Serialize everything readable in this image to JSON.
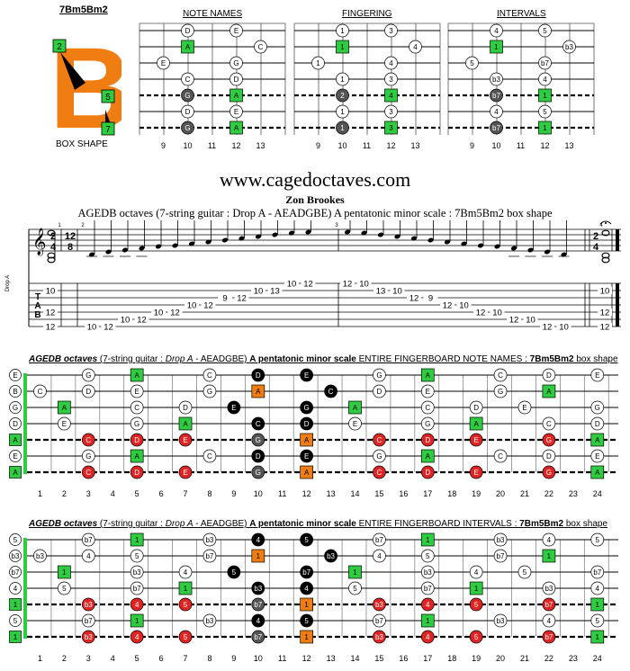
{
  "header": {
    "shape_name": "7Bm5Bm2",
    "box_shape_label": "BOX SHAPE",
    "big_letter": "B",
    "logo_fingers": [
      "2",
      "5",
      "7"
    ],
    "col_titles": [
      "NOTE NAMES",
      "FINGERING",
      "INTERVALS"
    ],
    "fret_numbers": [
      "9",
      "10",
      "11",
      "12",
      "13"
    ]
  },
  "small_diagrams": {
    "note_names": [
      {
        "s": 0,
        "f": 10,
        "t": "D",
        "k": "w"
      },
      {
        "s": 0,
        "f": 12,
        "t": "E",
        "k": "w"
      },
      {
        "s": 1,
        "f": 10,
        "t": "A",
        "k": "g"
      },
      {
        "s": 1,
        "f": 13,
        "t": "C",
        "k": "w"
      },
      {
        "s": 2,
        "f": 9,
        "t": "E",
        "k": "w"
      },
      {
        "s": 2,
        "f": 12,
        "t": "G",
        "k": "w"
      },
      {
        "s": 3,
        "f": 10,
        "t": "C",
        "k": "w"
      },
      {
        "s": 3,
        "f": 12,
        "t": "D",
        "k": "w"
      },
      {
        "s": 4,
        "f": 10,
        "t": "G",
        "k": "d"
      },
      {
        "s": 4,
        "f": 12,
        "t": "A",
        "k": "g"
      },
      {
        "s": 5,
        "f": 10,
        "t": "D",
        "k": "w"
      },
      {
        "s": 5,
        "f": 12,
        "t": "E",
        "k": "w"
      },
      {
        "s": 6,
        "f": 10,
        "t": "G",
        "k": "d"
      },
      {
        "s": 6,
        "f": 12,
        "t": "A",
        "k": "g"
      }
    ],
    "fingering": [
      {
        "s": 0,
        "f": 10,
        "t": "1",
        "k": "w"
      },
      {
        "s": 0,
        "f": 12,
        "t": "3",
        "k": "w"
      },
      {
        "s": 1,
        "f": 10,
        "t": "1",
        "k": "g"
      },
      {
        "s": 1,
        "f": 13,
        "t": "4",
        "k": "w"
      },
      {
        "s": 2,
        "f": 9,
        "t": "1",
        "k": "w"
      },
      {
        "s": 2,
        "f": 12,
        "t": "4",
        "k": "w"
      },
      {
        "s": 3,
        "f": 10,
        "t": "1",
        "k": "w"
      },
      {
        "s": 3,
        "f": 12,
        "t": "3",
        "k": "w"
      },
      {
        "s": 4,
        "f": 10,
        "t": "2",
        "k": "d"
      },
      {
        "s": 4,
        "f": 12,
        "t": "4",
        "k": "g"
      },
      {
        "s": 5,
        "f": 10,
        "t": "1",
        "k": "w"
      },
      {
        "s": 5,
        "f": 12,
        "t": "3",
        "k": "w"
      },
      {
        "s": 6,
        "f": 10,
        "t": "1",
        "k": "d"
      },
      {
        "s": 6,
        "f": 12,
        "t": "3",
        "k": "g"
      }
    ],
    "intervals": [
      {
        "s": 0,
        "f": 10,
        "t": "4",
        "k": "w"
      },
      {
        "s": 0,
        "f": 12,
        "t": "5",
        "k": "w"
      },
      {
        "s": 1,
        "f": 10,
        "t": "1",
        "k": "g"
      },
      {
        "s": 1,
        "f": 13,
        "t": "b3",
        "k": "w"
      },
      {
        "s": 2,
        "f": 9,
        "t": "5",
        "k": "w"
      },
      {
        "s": 2,
        "f": 12,
        "t": "b7",
        "k": "w"
      },
      {
        "s": 3,
        "f": 10,
        "t": "b3",
        "k": "w"
      },
      {
        "s": 3,
        "f": 12,
        "t": "4",
        "k": "w"
      },
      {
        "s": 4,
        "f": 10,
        "t": "b7",
        "k": "d"
      },
      {
        "s": 4,
        "f": 12,
        "t": "1",
        "k": "g"
      },
      {
        "s": 5,
        "f": 10,
        "t": "4",
        "k": "w"
      },
      {
        "s": 5,
        "f": 12,
        "t": "5",
        "k": "w"
      },
      {
        "s": 6,
        "f": 10,
        "t": "b7",
        "k": "d"
      },
      {
        "s": 6,
        "f": 12,
        "t": "1",
        "k": "g"
      }
    ]
  },
  "site": "www.cagedoctaves.com",
  "author": "Zon Brookes",
  "description": "AGEDB octaves (7-string guitar : Drop A - AEADGBE) A pentatonic minor scale : 7Bm5Bm2 box shape",
  "notation": {
    "left_tuning": "Drop A",
    "tab_letters": [
      "T",
      "A",
      "B"
    ],
    "time1": [
      "2",
      "4"
    ],
    "time2": [
      "12",
      "8"
    ],
    "time3": [
      "2",
      "4"
    ],
    "measures": [
      "1",
      "2",
      "3",
      "4"
    ],
    "m1_tab": [
      {
        "s": 1,
        "t": "10"
      },
      {
        "s": 4,
        "t": "12"
      },
      {
        "s": 6,
        "t": "12"
      }
    ],
    "run_up": [
      {
        "s": 6,
        "t": "10"
      },
      {
        "s": 6,
        "t": "12"
      },
      {
        "s": 5,
        "t": "10"
      },
      {
        "s": 5,
        "t": "12"
      },
      {
        "s": 4,
        "t": "10"
      },
      {
        "s": 4,
        "t": "12"
      },
      {
        "s": 3,
        "t": "10"
      },
      {
        "s": 3,
        "t": "12"
      },
      {
        "s": 2,
        "t": "9"
      },
      {
        "s": 2,
        "t": "12"
      },
      {
        "s": 1,
        "t": "10"
      },
      {
        "s": 1,
        "t": "13"
      },
      {
        "s": 0,
        "t": "10"
      },
      {
        "s": 0,
        "t": "12"
      }
    ],
    "run_down": [
      {
        "s": 0,
        "t": "12"
      },
      {
        "s": 0,
        "t": "10"
      },
      {
        "s": 1,
        "t": "13"
      },
      {
        "s": 1,
        "t": "10"
      },
      {
        "s": 2,
        "t": "12"
      },
      {
        "s": 2,
        "t": "9"
      },
      {
        "s": 3,
        "t": "12"
      },
      {
        "s": 3,
        "t": "10"
      },
      {
        "s": 4,
        "t": "12"
      },
      {
        "s": 4,
        "t": "10"
      },
      {
        "s": 5,
        "t": "12"
      },
      {
        "s": 5,
        "t": "10"
      },
      {
        "s": 6,
        "t": "12"
      },
      {
        "s": 6,
        "t": "10"
      }
    ],
    "m4_tab": [
      {
        "s": 1,
        "t": "10"
      },
      {
        "s": 4,
        "t": "12"
      },
      {
        "s": 6,
        "t": "12"
      }
    ]
  },
  "fb1": {
    "title_parts": [
      "AGEDB octaves",
      " (7-string guitar : ",
      "Drop A",
      " - AEADGBE) ",
      "A pentatonic minor scale",
      " ENTIRE FINGERBOARD NOTE NAMES : ",
      "7Bm5Bm2",
      " box shape"
    ],
    "open": [
      "E",
      "B",
      "G",
      "D",
      "A",
      "E",
      "A"
    ],
    "open_k": [
      "w",
      "w",
      "w",
      "w",
      "g",
      "w",
      "g"
    ],
    "notes": [
      {
        "s": 0,
        "f": 3,
        "t": "G",
        "k": "w"
      },
      {
        "s": 0,
        "f": 5,
        "t": "A",
        "k": "g"
      },
      {
        "s": 0,
        "f": 8,
        "t": "C",
        "k": "w"
      },
      {
        "s": 0,
        "f": 10,
        "t": "D",
        "k": "b"
      },
      {
        "s": 0,
        "f": 12,
        "t": "E",
        "k": "b"
      },
      {
        "s": 0,
        "f": 15,
        "t": "G",
        "k": "w"
      },
      {
        "s": 0,
        "f": 17,
        "t": "A",
        "k": "g"
      },
      {
        "s": 0,
        "f": 20,
        "t": "C",
        "k": "w"
      },
      {
        "s": 0,
        "f": 22,
        "t": "D",
        "k": "w"
      },
      {
        "s": 0,
        "f": 24,
        "t": "E",
        "k": "w"
      },
      {
        "s": 1,
        "f": 1,
        "t": "C",
        "k": "w"
      },
      {
        "s": 1,
        "f": 3,
        "t": "D",
        "k": "w"
      },
      {
        "s": 1,
        "f": 5,
        "t": "E",
        "k": "w"
      },
      {
        "s": 1,
        "f": 8,
        "t": "G",
        "k": "w"
      },
      {
        "s": 1,
        "f": 10,
        "t": "A",
        "k": "o"
      },
      {
        "s": 1,
        "f": 13,
        "t": "C",
        "k": "b"
      },
      {
        "s": 1,
        "f": 15,
        "t": "D",
        "k": "w"
      },
      {
        "s": 1,
        "f": 17,
        "t": "E",
        "k": "w"
      },
      {
        "s": 1,
        "f": 20,
        "t": "G",
        "k": "w"
      },
      {
        "s": 1,
        "f": 22,
        "t": "A",
        "k": "g"
      },
      {
        "s": 2,
        "f": 2,
        "t": "A",
        "k": "g"
      },
      {
        "s": 2,
        "f": 5,
        "t": "C",
        "k": "w"
      },
      {
        "s": 2,
        "f": 7,
        "t": "D",
        "k": "w"
      },
      {
        "s": 2,
        "f": 9,
        "t": "E",
        "k": "b"
      },
      {
        "s": 2,
        "f": 12,
        "t": "G",
        "k": "b"
      },
      {
        "s": 2,
        "f": 14,
        "t": "A",
        "k": "g"
      },
      {
        "s": 2,
        "f": 17,
        "t": "C",
        "k": "w"
      },
      {
        "s": 2,
        "f": 19,
        "t": "D",
        "k": "w"
      },
      {
        "s": 2,
        "f": 21,
        "t": "E",
        "k": "w"
      },
      {
        "s": 2,
        "f": 24,
        "t": "G",
        "k": "w"
      },
      {
        "s": 3,
        "f": 2,
        "t": "E",
        "k": "w"
      },
      {
        "s": 3,
        "f": 5,
        "t": "G",
        "k": "w"
      },
      {
        "s": 3,
        "f": 7,
        "t": "A",
        "k": "g"
      },
      {
        "s": 3,
        "f": 10,
        "t": "C",
        "k": "b"
      },
      {
        "s": 3,
        "f": 12,
        "t": "D",
        "k": "b"
      },
      {
        "s": 3,
        "f": 14,
        "t": "E",
        "k": "w"
      },
      {
        "s": 3,
        "f": 17,
        "t": "G",
        "k": "w"
      },
      {
        "s": 3,
        "f": 19,
        "t": "A",
        "k": "g"
      },
      {
        "s": 3,
        "f": 22,
        "t": "C",
        "k": "w"
      },
      {
        "s": 3,
        "f": 24,
        "t": "D",
        "k": "w"
      },
      {
        "s": 4,
        "f": 3,
        "t": "C",
        "k": "r"
      },
      {
        "s": 4,
        "f": 5,
        "t": "D",
        "k": "r"
      },
      {
        "s": 4,
        "f": 7,
        "t": "E",
        "k": "r"
      },
      {
        "s": 4,
        "f": 10,
        "t": "G",
        "k": "d"
      },
      {
        "s": 4,
        "f": 12,
        "t": "A",
        "k": "o"
      },
      {
        "s": 4,
        "f": 15,
        "t": "C",
        "k": "r"
      },
      {
        "s": 4,
        "f": 17,
        "t": "D",
        "k": "r"
      },
      {
        "s": 4,
        "f": 19,
        "t": "E",
        "k": "r"
      },
      {
        "s": 4,
        "f": 22,
        "t": "G",
        "k": "r"
      },
      {
        "s": 4,
        "f": 24,
        "t": "A",
        "k": "g"
      },
      {
        "s": 5,
        "f": 3,
        "t": "G",
        "k": "w"
      },
      {
        "s": 5,
        "f": 5,
        "t": "A",
        "k": "g"
      },
      {
        "s": 5,
        "f": 8,
        "t": "C",
        "k": "w"
      },
      {
        "s": 5,
        "f": 10,
        "t": "D",
        "k": "b"
      },
      {
        "s": 5,
        "f": 12,
        "t": "E",
        "k": "b"
      },
      {
        "s": 5,
        "f": 15,
        "t": "G",
        "k": "w"
      },
      {
        "s": 5,
        "f": 17,
        "t": "A",
        "k": "g"
      },
      {
        "s": 5,
        "f": 20,
        "t": "C",
        "k": "w"
      },
      {
        "s": 5,
        "f": 22,
        "t": "D",
        "k": "w"
      },
      {
        "s": 5,
        "f": 24,
        "t": "E",
        "k": "w"
      },
      {
        "s": 6,
        "f": 3,
        "t": "C",
        "k": "r"
      },
      {
        "s": 6,
        "f": 5,
        "t": "D",
        "k": "r"
      },
      {
        "s": 6,
        "f": 7,
        "t": "E",
        "k": "r"
      },
      {
        "s": 6,
        "f": 10,
        "t": "G",
        "k": "d"
      },
      {
        "s": 6,
        "f": 12,
        "t": "A",
        "k": "o"
      },
      {
        "s": 6,
        "f": 15,
        "t": "C",
        "k": "r"
      },
      {
        "s": 6,
        "f": 17,
        "t": "D",
        "k": "r"
      },
      {
        "s": 6,
        "f": 19,
        "t": "E",
        "k": "r"
      },
      {
        "s": 6,
        "f": 22,
        "t": "G",
        "k": "r"
      },
      {
        "s": 6,
        "f": 24,
        "t": "A",
        "k": "g"
      }
    ]
  },
  "fb2": {
    "title_parts": [
      "AGEDB octaves",
      " (7-string guitar : ",
      "Drop A",
      " - AEADGBE) ",
      "A pentatonic minor scale",
      " ENTIRE FINGERBOARD INTERVALS : ",
      "7Bm5Bm2",
      " box shape"
    ],
    "open": [
      "5",
      "b3",
      "b7",
      "4",
      "1",
      "5",
      "1"
    ],
    "open_k": [
      "w",
      "w",
      "w",
      "w",
      "g",
      "w",
      "g"
    ],
    "notes": [
      {
        "s": 0,
        "f": 3,
        "t": "b7",
        "k": "w"
      },
      {
        "s": 0,
        "f": 5,
        "t": "1",
        "k": "g"
      },
      {
        "s": 0,
        "f": 8,
        "t": "b3",
        "k": "w"
      },
      {
        "s": 0,
        "f": 10,
        "t": "4",
        "k": "b"
      },
      {
        "s": 0,
        "f": 12,
        "t": "5",
        "k": "b"
      },
      {
        "s": 0,
        "f": 15,
        "t": "b7",
        "k": "w"
      },
      {
        "s": 0,
        "f": 17,
        "t": "1",
        "k": "g"
      },
      {
        "s": 0,
        "f": 20,
        "t": "b3",
        "k": "w"
      },
      {
        "s": 0,
        "f": 22,
        "t": "4",
        "k": "w"
      },
      {
        "s": 0,
        "f": 24,
        "t": "5",
        "k": "w"
      },
      {
        "s": 1,
        "f": 1,
        "t": "b3",
        "k": "w"
      },
      {
        "s": 1,
        "f": 3,
        "t": "4",
        "k": "w"
      },
      {
        "s": 1,
        "f": 5,
        "t": "5",
        "k": "w"
      },
      {
        "s": 1,
        "f": 8,
        "t": "b7",
        "k": "w"
      },
      {
        "s": 1,
        "f": 10,
        "t": "1",
        "k": "o"
      },
      {
        "s": 1,
        "f": 13,
        "t": "b3",
        "k": "b"
      },
      {
        "s": 1,
        "f": 15,
        "t": "4",
        "k": "w"
      },
      {
        "s": 1,
        "f": 17,
        "t": "5",
        "k": "w"
      },
      {
        "s": 1,
        "f": 20,
        "t": "b7",
        "k": "w"
      },
      {
        "s": 1,
        "f": 22,
        "t": "1",
        "k": "g"
      },
      {
        "s": 2,
        "f": 2,
        "t": "1",
        "k": "g"
      },
      {
        "s": 2,
        "f": 5,
        "t": "b3",
        "k": "w"
      },
      {
        "s": 2,
        "f": 7,
        "t": "4",
        "k": "w"
      },
      {
        "s": 2,
        "f": 9,
        "t": "5",
        "k": "b"
      },
      {
        "s": 2,
        "f": 12,
        "t": "b7",
        "k": "b"
      },
      {
        "s": 2,
        "f": 14,
        "t": "1",
        "k": "g"
      },
      {
        "s": 2,
        "f": 17,
        "t": "b3",
        "k": "w"
      },
      {
        "s": 2,
        "f": 19,
        "t": "4",
        "k": "w"
      },
      {
        "s": 2,
        "f": 21,
        "t": "5",
        "k": "w"
      },
      {
        "s": 2,
        "f": 24,
        "t": "b7",
        "k": "w"
      },
      {
        "s": 3,
        "f": 2,
        "t": "5",
        "k": "w"
      },
      {
        "s": 3,
        "f": 5,
        "t": "b7",
        "k": "w"
      },
      {
        "s": 3,
        "f": 7,
        "t": "1",
        "k": "g"
      },
      {
        "s": 3,
        "f": 10,
        "t": "b3",
        "k": "b"
      },
      {
        "s": 3,
        "f": 12,
        "t": "4",
        "k": "b"
      },
      {
        "s": 3,
        "f": 14,
        "t": "5",
        "k": "w"
      },
      {
        "s": 3,
        "f": 17,
        "t": "b7",
        "k": "w"
      },
      {
        "s": 3,
        "f": 19,
        "t": "1",
        "k": "g"
      },
      {
        "s": 3,
        "f": 22,
        "t": "b3",
        "k": "w"
      },
      {
        "s": 3,
        "f": 24,
        "t": "4",
        "k": "w"
      },
      {
        "s": 4,
        "f": 3,
        "t": "b3",
        "k": "r"
      },
      {
        "s": 4,
        "f": 5,
        "t": "4",
        "k": "r"
      },
      {
        "s": 4,
        "f": 7,
        "t": "5",
        "k": "r"
      },
      {
        "s": 4,
        "f": 10,
        "t": "b7",
        "k": "d"
      },
      {
        "s": 4,
        "f": 12,
        "t": "1",
        "k": "o"
      },
      {
        "s": 4,
        "f": 15,
        "t": "b3",
        "k": "r"
      },
      {
        "s": 4,
        "f": 17,
        "t": "4",
        "k": "r"
      },
      {
        "s": 4,
        "f": 19,
        "t": "5",
        "k": "r"
      },
      {
        "s": 4,
        "f": 22,
        "t": "b7",
        "k": "r"
      },
      {
        "s": 4,
        "f": 24,
        "t": "1",
        "k": "g"
      },
      {
        "s": 5,
        "f": 3,
        "t": "b7",
        "k": "w"
      },
      {
        "s": 5,
        "f": 5,
        "t": "1",
        "k": "g"
      },
      {
        "s": 5,
        "f": 8,
        "t": "b3",
        "k": "w"
      },
      {
        "s": 5,
        "f": 10,
        "t": "4",
        "k": "b"
      },
      {
        "s": 5,
        "f": 12,
        "t": "5",
        "k": "b"
      },
      {
        "s": 5,
        "f": 15,
        "t": "b7",
        "k": "w"
      },
      {
        "s": 5,
        "f": 17,
        "t": "1",
        "k": "g"
      },
      {
        "s": 5,
        "f": 20,
        "t": "b3",
        "k": "w"
      },
      {
        "s": 5,
        "f": 22,
        "t": "4",
        "k": "w"
      },
      {
        "s": 5,
        "f": 24,
        "t": "5",
        "k": "w"
      },
      {
        "s": 6,
        "f": 3,
        "t": "b3",
        "k": "r"
      },
      {
        "s": 6,
        "f": 5,
        "t": "4",
        "k": "r"
      },
      {
        "s": 6,
        "f": 7,
        "t": "5",
        "k": "r"
      },
      {
        "s": 6,
        "f": 10,
        "t": "b7",
        "k": "d"
      },
      {
        "s": 6,
        "f": 12,
        "t": "1",
        "k": "o"
      },
      {
        "s": 6,
        "f": 15,
        "t": "b3",
        "k": "r"
      },
      {
        "s": 6,
        "f": 17,
        "t": "4",
        "k": "r"
      },
      {
        "s": 6,
        "f": 19,
        "t": "5",
        "k": "r"
      },
      {
        "s": 6,
        "f": 22,
        "t": "b7",
        "k": "r"
      },
      {
        "s": 6,
        "f": 24,
        "t": "1",
        "k": "g"
      }
    ]
  },
  "fret_labels": [
    "1",
    "2",
    "3",
    "4",
    "5",
    "6",
    "7",
    "8",
    "9",
    "10",
    "11",
    "12",
    "13",
    "14",
    "15",
    "16",
    "17",
    "18",
    "19",
    "20",
    "21",
    "22",
    "23",
    "24"
  ],
  "colors": {
    "green": "#2ecc40",
    "orange": "#f07d12",
    "red": "#e02424",
    "black": "#000000",
    "dark": "#555555"
  }
}
